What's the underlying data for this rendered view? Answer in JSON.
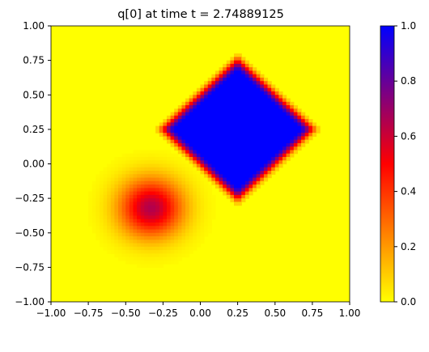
{
  "chart_data": {
    "type": "heatmap",
    "title": "q[0] at time t =     2.74889125",
    "xlabel": "",
    "ylabel": "",
    "xlim": [
      -1.0,
      1.0
    ],
    "ylim": [
      -1.0,
      1.0
    ],
    "x_ticks": [
      "−1.00",
      "−0.75",
      "−0.50",
      "−0.25",
      "0.00",
      "0.25",
      "0.50",
      "0.75",
      "1.00"
    ],
    "y_ticks": [
      "1.00",
      "0.75",
      "0.50",
      "0.25",
      "0.00",
      "−0.25",
      "−0.50",
      "−0.75",
      "−1.00"
    ],
    "colorbar": {
      "range": [
        0.0,
        1.0
      ],
      "ticks": [
        "1.0",
        "0.8",
        "0.6",
        "0.4",
        "0.2",
        "0.0"
      ],
      "colors": [
        "#ffff00",
        "#ff0000",
        "#0000ff"
      ]
    },
    "grid": false,
    "features": [
      {
        "shape": "circle",
        "center": [
          -0.33,
          -0.32
        ],
        "radius": 0.38,
        "peak": 0.65
      },
      {
        "shape": "diamond",
        "center": [
          0.25,
          0.25
        ],
        "halfwidth": 0.5,
        "peak": 1.0
      }
    ]
  }
}
